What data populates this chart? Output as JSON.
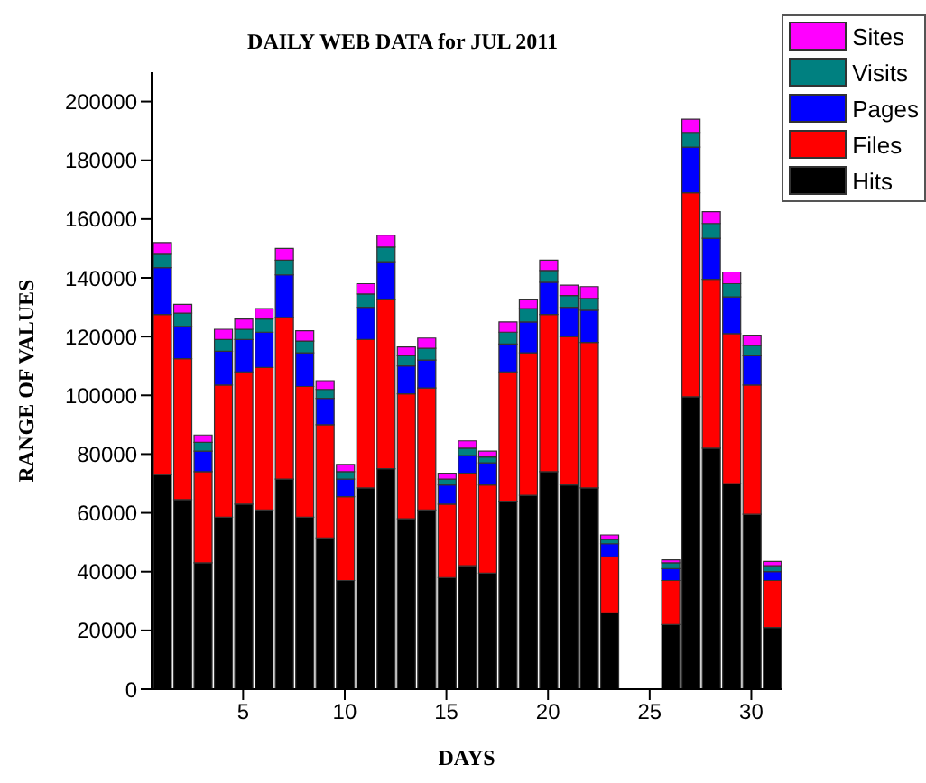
{
  "chart_data": {
    "type": "bar",
    "title": "DAILY WEB DATA for JUL 2011",
    "xlabel": "DAYS",
    "ylabel": "RANGE OF VALUES",
    "stacked": true,
    "x": [
      1,
      2,
      3,
      4,
      5,
      6,
      7,
      8,
      9,
      10,
      11,
      12,
      13,
      14,
      15,
      16,
      17,
      18,
      19,
      20,
      21,
      22,
      23,
      24,
      25,
      26,
      27,
      28,
      29,
      30,
      31
    ],
    "xlim": [
      0.5,
      31.5
    ],
    "xticks": [
      5,
      10,
      15,
      20,
      25,
      30
    ],
    "ylim": [
      0,
      210000
    ],
    "yticks": [
      0,
      20000,
      40000,
      60000,
      80000,
      100000,
      120000,
      140000,
      160000,
      180000,
      200000
    ],
    "grid": false,
    "legend": "top right",
    "series": [
      {
        "name": "Hits",
        "color": "#000000",
        "values": [
          73000,
          64500,
          43000,
          58500,
          63000,
          61000,
          71500,
          58500,
          51500,
          37000,
          68500,
          75000,
          58000,
          61000,
          38000,
          42000,
          39500,
          64000,
          66000,
          74000,
          69500,
          68500,
          26000,
          0,
          0,
          22000,
          99500,
          82000,
          70000,
          59500,
          21000
        ]
      },
      {
        "name": "Files",
        "color": "#ff0000",
        "values": [
          54500,
          48000,
          31000,
          45000,
          45000,
          48500,
          55000,
          44500,
          38500,
          28500,
          50500,
          57500,
          42500,
          41500,
          25000,
          31500,
          30000,
          44000,
          48500,
          53500,
          50500,
          49500,
          19000,
          0,
          0,
          15000,
          69500,
          57500,
          51000,
          44000,
          16000
        ]
      },
      {
        "name": "Pages",
        "color": "#0000ff",
        "values": [
          16000,
          11000,
          7000,
          11500,
          11000,
          12000,
          14500,
          11500,
          9000,
          6000,
          11000,
          13000,
          9500,
          9500,
          6500,
          6000,
          7500,
          9500,
          10500,
          11000,
          10000,
          11000,
          4500,
          0,
          0,
          4000,
          15500,
          14000,
          12500,
          10000,
          3000
        ]
      },
      {
        "name": "Visits",
        "color": "#008080",
        "values": [
          4500,
          4500,
          3000,
          4000,
          3500,
          4500,
          5000,
          4000,
          3000,
          2500,
          4500,
          5000,
          3500,
          4000,
          2000,
          2500,
          2000,
          4000,
          4500,
          4000,
          4000,
          4000,
          1500,
          0,
          0,
          2000,
          5000,
          5000,
          4500,
          3500,
          2000
        ]
      },
      {
        "name": "Sites",
        "color": "#ff00ff",
        "values": [
          4000,
          3000,
          2500,
          3500,
          3500,
          3500,
          4000,
          3500,
          3000,
          2500,
          3500,
          4000,
          3000,
          3500,
          2000,
          2500,
          2000,
          3500,
          3000,
          3500,
          3500,
          4000,
          1500,
          0,
          0,
          1000,
          4500,
          4000,
          4000,
          3500,
          1500
        ]
      }
    ]
  }
}
